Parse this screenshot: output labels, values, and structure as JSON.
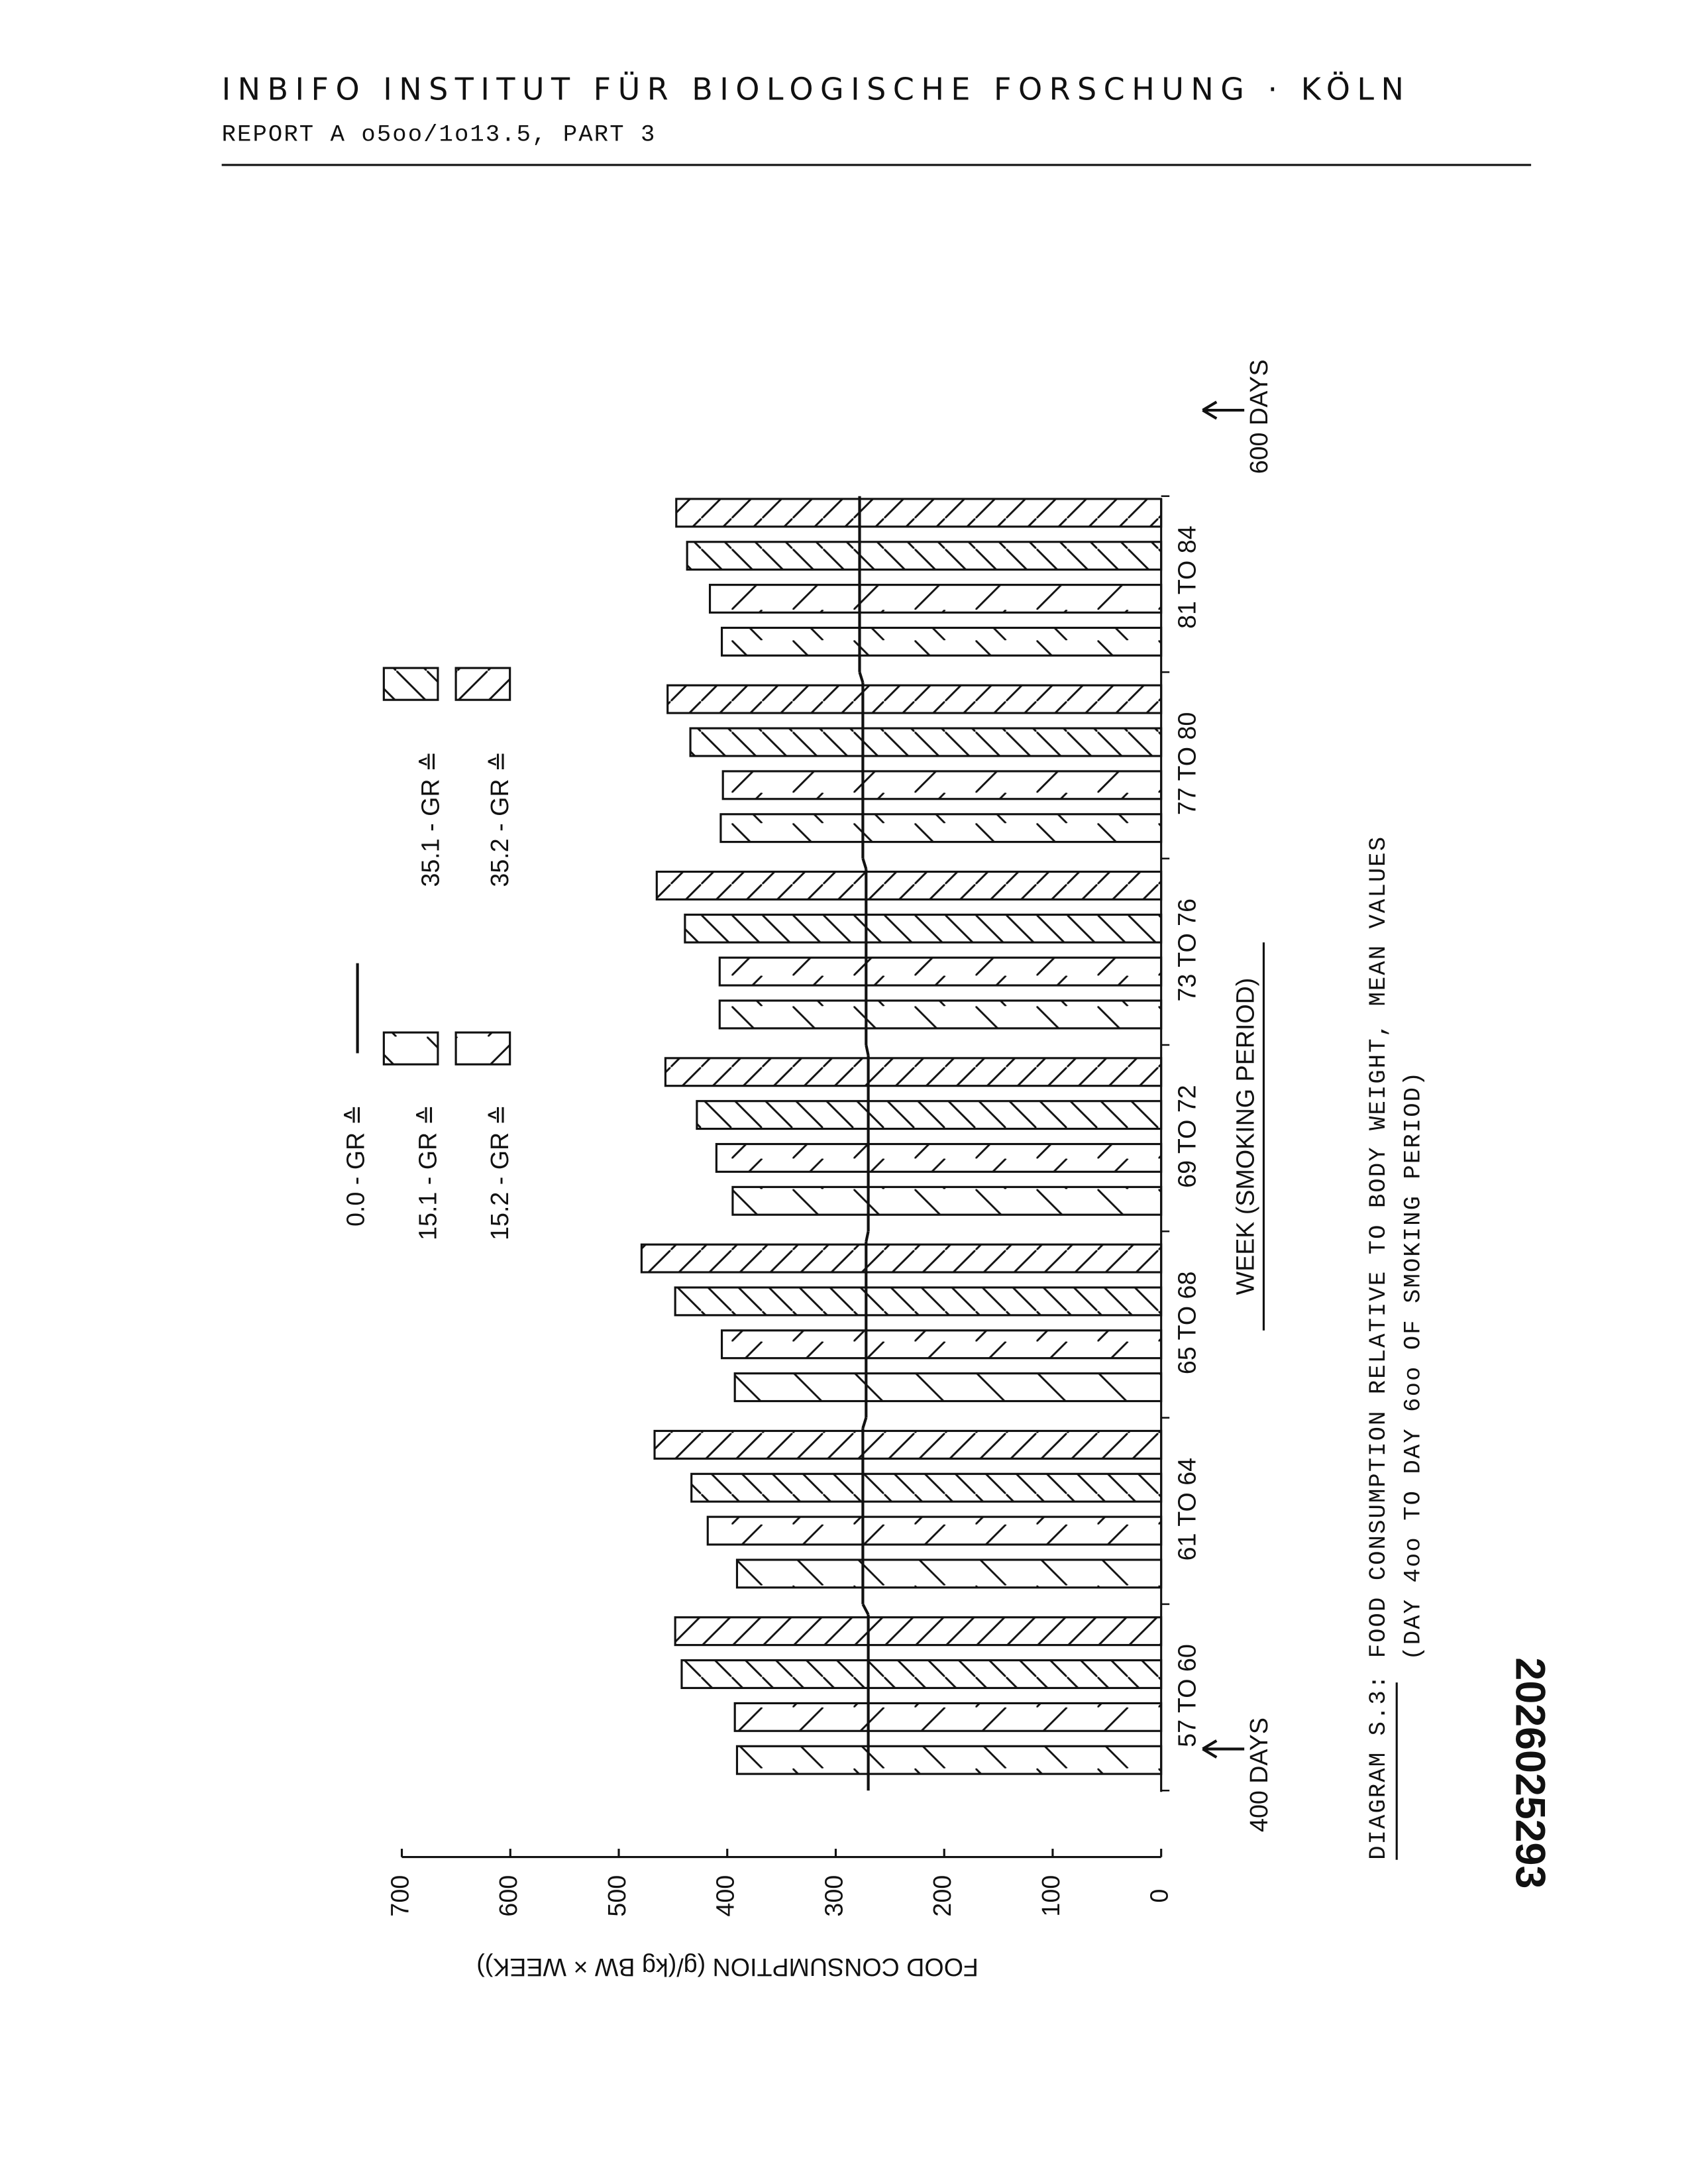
{
  "header": {
    "institute": "INBIFO INSTITUT FÜR BIOLOGISCHE FORSCHUNG · KÖLN",
    "report": "REPORT A o5oo/1o13.5, PART 3"
  },
  "document_number": "2026025293",
  "chart_data": {
    "type": "bar",
    "caption_label": "DIAGRAM S.3:",
    "title": "FOOD CONSUMPTION RELATIVE TO BODY WEIGHT, MEAN VALUES",
    "subtitle": "(DAY 4oo TO DAY 6oo OF SMOKING PERIOD)",
    "xlabel": "WEEK (SMOKING PERIOD)",
    "ylabel": "FOOD CONSUMPTION (g/(kg BW × WEEK))",
    "annotations": [
      "400 DAYS",
      "600 DAYS"
    ],
    "legend_symbol": "≙",
    "categories": [
      "57 TO 60",
      "61 TO 64",
      "65 TO 68",
      "69 TO 72",
      "73 TO 76",
      "77 TO 80",
      "81 TO 84"
    ],
    "series": [
      {
        "name": "15.1 - GR",
        "pattern": "sparse-back",
        "color": "#111111",
        "values": [
          391,
          391,
          393,
          395,
          407,
          406,
          405
        ]
      },
      {
        "name": "15.2 - GR",
        "pattern": "sparse-forward",
        "color": "#111111",
        "values": [
          393,
          418,
          405,
          410,
          407,
          404,
          416
        ]
      },
      {
        "name": "35.1 - GR",
        "pattern": "dense-back",
        "color": "#111111",
        "values": [
          442,
          433,
          448,
          428,
          439,
          434,
          437
        ]
      },
      {
        "name": "35.2 - GR",
        "pattern": "dense-forward",
        "color": "#111111",
        "values": [
          448,
          467,
          479,
          457,
          465,
          455,
          447
        ]
      }
    ],
    "control": {
      "name": "0.0 - GR",
      "type": "line",
      "color": "#111111",
      "values": [
        270,
        275,
        272,
        270,
        272,
        275,
        278
      ]
    },
    "ylim": [
      0,
      700
    ],
    "yticks": [
      0,
      100,
      200,
      300,
      400,
      500,
      600,
      700
    ],
    "grid": false
  }
}
